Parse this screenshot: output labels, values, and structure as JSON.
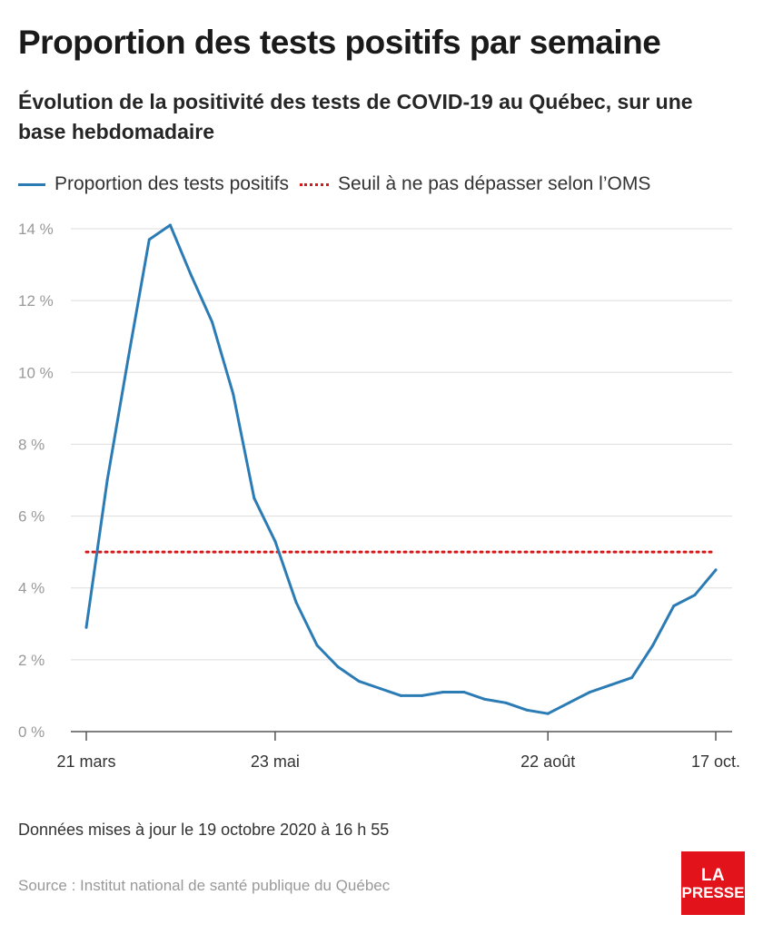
{
  "title": "Proportion des tests positifs par semaine",
  "subtitle": "Évolution de la positivité des tests de COVID-19 au Québec, sur une base hebdomadaire",
  "legend": {
    "series_label": "Proportion des tests positifs",
    "threshold_label": "Seuil à ne pas dépasser selon l’OMS"
  },
  "footer": {
    "updated": "Données mises à jour le 19 octobre 2020 à 16 h 55",
    "source": "Source : Institut national de santé publique du Québec"
  },
  "logo": {
    "line1": "LA",
    "line2": "PRESSE"
  },
  "colors": {
    "series": "#2b7bb5",
    "threshold": "#d7191c",
    "grid": "#dddddd",
    "axis": "#555555",
    "logo": "#e2131a"
  },
  "chart_data": {
    "type": "line",
    "x_tick_labels": [
      "21 mars",
      "23 mai",
      "22 août",
      "17 oct."
    ],
    "y_tick_labels": [
      "0 %",
      "2 %",
      "4 %",
      "6 %",
      "8 %",
      "10 %",
      "12 %",
      "14 %"
    ],
    "ylim": [
      0,
      14
    ],
    "grid": true,
    "legend_position": "top-left",
    "series": [
      {
        "name": "Proportion des tests positifs",
        "x": [
          "2020-03-21",
          "2020-03-28",
          "2020-04-04",
          "2020-04-11",
          "2020-04-18",
          "2020-04-25",
          "2020-05-02",
          "2020-05-09",
          "2020-05-16",
          "2020-05-23",
          "2020-05-30",
          "2020-06-06",
          "2020-06-13",
          "2020-06-20",
          "2020-06-27",
          "2020-07-04",
          "2020-07-11",
          "2020-07-18",
          "2020-07-25",
          "2020-08-01",
          "2020-08-08",
          "2020-08-15",
          "2020-08-22",
          "2020-08-29",
          "2020-09-05",
          "2020-09-12",
          "2020-09-19",
          "2020-09-26",
          "2020-10-03",
          "2020-10-10",
          "2020-10-17"
        ],
        "values": [
          2.9,
          7.0,
          10.4,
          13.7,
          14.1,
          12.7,
          11.4,
          9.4,
          6.5,
          5.3,
          3.6,
          2.4,
          1.8,
          1.4,
          1.2,
          1.0,
          1.0,
          1.1,
          1.1,
          0.9,
          0.8,
          0.6,
          0.5,
          0.8,
          1.1,
          1.3,
          1.5,
          2.4,
          3.5,
          3.8,
          4.5
        ]
      },
      {
        "name": "Seuil à ne pas dépasser selon l’OMS",
        "style": "dotted",
        "values": [
          5,
          5
        ]
      }
    ]
  }
}
